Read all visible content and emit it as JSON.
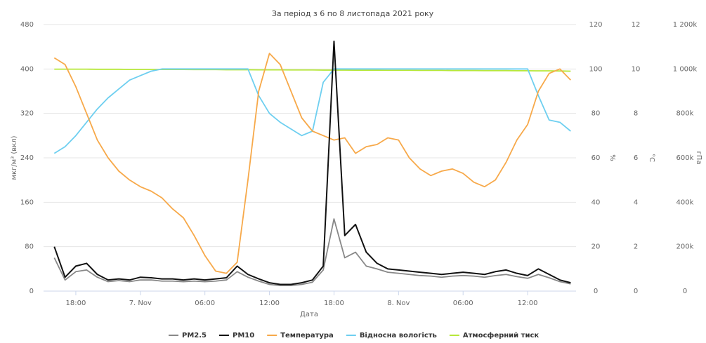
{
  "chart_data": {
    "type": "line",
    "subtitle": "За період з 6 по 8 листопада 2021 року",
    "x_title": "Дата",
    "y_title": "мкг/м³ (вкл)",
    "y2_title": "%",
    "y3_title": "°C",
    "y4_title": "гПа",
    "x": [
      16,
      17,
      18,
      19,
      20,
      21,
      22,
      23,
      24,
      25,
      26,
      27,
      28,
      29,
      30,
      31,
      32,
      33,
      34,
      35,
      36,
      37,
      38,
      39,
      40,
      41,
      42,
      43,
      44,
      45,
      46,
      47,
      48,
      49,
      50,
      51,
      52,
      53,
      54,
      55,
      56,
      57,
      58,
      59,
      60,
      61,
      62,
      63,
      64
    ],
    "xlim": [
      15,
      64.5
    ],
    "xticks": [
      {
        "value": 18,
        "label": "18:00"
      },
      {
        "value": 24,
        "label": "7. Nov"
      },
      {
        "value": 30,
        "label": "06:00"
      },
      {
        "value": 36,
        "label": "12:00"
      },
      {
        "value": 42,
        "label": "18:00"
      },
      {
        "value": 48,
        "label": "8. Nov"
      },
      {
        "value": 54,
        "label": "06:00"
      },
      {
        "value": 60,
        "label": "12:00"
      }
    ],
    "ylim": [
      0,
      480
    ],
    "yticks": [
      0,
      80,
      160,
      240,
      320,
      400,
      480
    ],
    "y2lim": [
      0,
      120
    ],
    "y2ticks": [
      0,
      20,
      40,
      60,
      80,
      100,
      120
    ],
    "y3lim": [
      0,
      12
    ],
    "y3ticks": [
      0,
      2,
      4,
      6,
      8,
      10,
      12
    ],
    "y4lim": [
      0,
      1200000
    ],
    "y4ticks": [
      0,
      {
        "value": 200000,
        "label": "200k"
      },
      {
        "value": 400000,
        "label": "400k"
      },
      {
        "value": 600000,
        "label": "600k"
      },
      {
        "value": 800000,
        "label": "800k"
      },
      {
        "value": 1000000,
        "label": "1 000k"
      },
      {
        "value": 1200000,
        "label": "1 200k"
      }
    ],
    "grid": true,
    "series": [
      {
        "name": "PM2.5",
        "color": "#888888",
        "axis": "y",
        "values": [
          60,
          20,
          35,
          38,
          25,
          17,
          19,
          17,
          20,
          20,
          18,
          18,
          17,
          18,
          17,
          18,
          20,
          35,
          25,
          18,
          12,
          10,
          10,
          12,
          16,
          38,
          130,
          60,
          70,
          45,
          40,
          34,
          32,
          30,
          28,
          27,
          25,
          27,
          28,
          27,
          25,
          28,
          30,
          26,
          23,
          30,
          24,
          17,
          13
        ]
      },
      {
        "name": "PM10",
        "color": "#111111",
        "axis": "y",
        "values": [
          80,
          25,
          45,
          50,
          30,
          20,
          22,
          20,
          25,
          24,
          22,
          22,
          20,
          22,
          20,
          22,
          24,
          45,
          30,
          22,
          15,
          12,
          12,
          15,
          20,
          45,
          450,
          100,
          120,
          70,
          50,
          40,
          38,
          36,
          34,
          32,
          30,
          32,
          34,
          32,
          30,
          35,
          38,
          32,
          28,
          40,
          30,
          20,
          15
        ]
      },
      {
        "name": "Температура",
        "color": "#f7a94a",
        "axis": "y3",
        "values": [
          10.5,
          10.2,
          9.2,
          8.0,
          6.8,
          6.0,
          5.4,
          5.0,
          4.7,
          4.5,
          4.2,
          3.7,
          3.3,
          2.5,
          1.6,
          0.9,
          0.8,
          1.3,
          5.0,
          9.0,
          10.7,
          10.2,
          9.0,
          7.8,
          7.2,
          7.0,
          6.8,
          6.9,
          6.2,
          6.5,
          6.6,
          6.9,
          6.8,
          6.0,
          5.5,
          5.2,
          5.4,
          5.5,
          5.3,
          4.9,
          4.7,
          5.0,
          5.8,
          6.8,
          7.5,
          9.0,
          9.8,
          10.0,
          9.5
        ]
      },
      {
        "name": "Відносна вологість",
        "color": "#6ecff0",
        "axis": "y2",
        "values": [
          62,
          65,
          70,
          76,
          82,
          87,
          91,
          95,
          97,
          99,
          100,
          100,
          100,
          100,
          100,
          100,
          100,
          100,
          100,
          88,
          80,
          76,
          73,
          70,
          72,
          94,
          100,
          100,
          100,
          100,
          100,
          100,
          100,
          100,
          100,
          100,
          100,
          100,
          100,
          100,
          100,
          100,
          100,
          100,
          100,
          88,
          77,
          76,
          72
        ]
      },
      {
        "name": "Атмосферний тиск",
        "color": "#b7e83a",
        "axis": "y4",
        "values": [
          999000,
          999000,
          999000,
          999000,
          998500,
          998500,
          998500,
          998000,
          998000,
          998000,
          997500,
          997500,
          997500,
          997000,
          997000,
          997000,
          996500,
          996500,
          996500,
          996000,
          996000,
          996000,
          995500,
          995500,
          995500,
          995000,
          995000,
          995000,
          994500,
          994500,
          994500,
          994000,
          994000,
          994000,
          993500,
          993500,
          993500,
          993000,
          993000,
          993000,
          992500,
          992500,
          992500,
          992000,
          992000,
          991500,
          991500,
          991000,
          990000
        ]
      }
    ]
  }
}
